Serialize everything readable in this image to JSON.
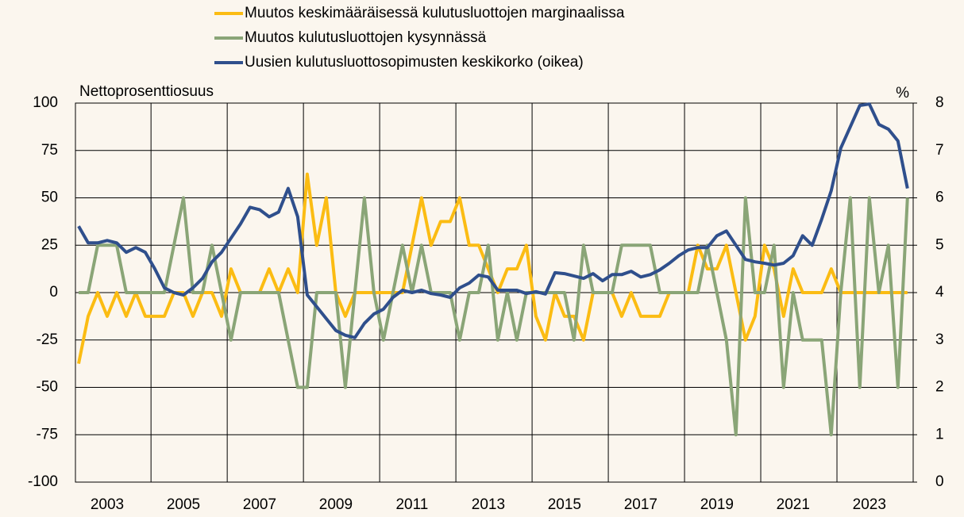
{
  "chart_data": {
    "type": "line",
    "ylabel": "Nettoprosenttiosuus",
    "y2label": "%",
    "x": [
      2002.75,
      2003,
      2003.25,
      2003.5,
      2003.75,
      2004,
      2004.25,
      2004.5,
      2004.75,
      2005,
      2005.25,
      2005.5,
      2005.75,
      2006,
      2006.25,
      2006.5,
      2006.75,
      2007,
      2007.25,
      2007.5,
      2007.75,
      2008,
      2008.25,
      2008.5,
      2008.75,
      2009,
      2009.25,
      2009.5,
      2009.75,
      2010,
      2010.25,
      2010.5,
      2010.75,
      2011,
      2011.25,
      2011.5,
      2011.75,
      2012,
      2012.25,
      2012.5,
      2012.75,
      2013,
      2013.25,
      2013.5,
      2013.75,
      2014,
      2014.25,
      2014.5,
      2014.75,
      2015,
      2015.25,
      2015.5,
      2015.75,
      2016,
      2016.25,
      2016.5,
      2016.75,
      2017,
      2017.25,
      2017.5,
      2017.75,
      2018,
      2018.25,
      2018.5,
      2018.75,
      2019,
      2019.25,
      2019.5,
      2019.75,
      2020,
      2020.25,
      2020.5,
      2020.75,
      2021,
      2021.25,
      2021.5,
      2021.75,
      2022,
      2022.25,
      2022.5,
      2022.75,
      2023,
      2023.25,
      2023.5,
      2023.75,
      2024,
      2024.25,
      2024.5
    ],
    "series": [
      {
        "name": "Muutos keskimääräisessä kulutusluottojen marginaalissa",
        "color": "#fbbc13",
        "values": [
          -37.5,
          -12.5,
          0,
          -12.5,
          0,
          -12.5,
          0,
          -12.5,
          -12.5,
          -12.5,
          0,
          0,
          -12.5,
          0,
          0,
          -12.5,
          12.5,
          0,
          0,
          0,
          12.5,
          0,
          12.5,
          0,
          62.5,
          25,
          50,
          0,
          -12.5,
          0,
          0,
          0,
          0,
          0,
          0,
          25,
          50,
          25,
          37.5,
          37.5,
          50,
          25,
          25,
          12.5,
          0,
          12.5,
          12.5,
          25,
          -12.5,
          -25,
          0,
          -12.5,
          -12.5,
          -25,
          0,
          0,
          0,
          -12.5,
          0,
          -12.5,
          -12.5,
          -12.5,
          0,
          0,
          0,
          25,
          12.5,
          12.5,
          25,
          0,
          -25,
          -12.5,
          25,
          12.5,
          -12.5,
          12.5,
          0,
          0,
          0,
          12.5,
          0,
          0,
          0,
          0,
          0,
          0,
          0,
          0
        ]
      },
      {
        "name": "Muutos kulutusluottojen kysynnässä",
        "color": "#8aa577",
        "values": [
          0,
          0,
          25,
          25,
          25,
          0,
          0,
          0,
          0,
          0,
          25,
          50,
          0,
          0,
          25,
          0,
          -25,
          0,
          0,
          0,
          0,
          0,
          -25,
          -50,
          -50,
          0,
          0,
          0,
          -50,
          0,
          50,
          0,
          -25,
          0,
          25,
          0,
          25,
          0,
          0,
          0,
          -25,
          0,
          0,
          25,
          -25,
          0,
          -25,
          0,
          0,
          0,
          0,
          0,
          -25,
          25,
          0,
          0,
          0,
          25,
          25,
          25,
          25,
          0,
          0,
          0,
          0,
          0,
          25,
          0,
          -25,
          -75,
          50,
          0,
          0,
          25,
          -50,
          0,
          -25,
          -25,
          -25,
          -75,
          0,
          50,
          -50,
          50,
          0,
          25,
          -50,
          50
        ]
      },
      {
        "name": "Uusien kulutusluottosopimusten keskikorko (oikea)",
        "color": "#2f4f8c",
        "axis": "y2",
        "values": [
          5.4,
          5.05,
          5.05,
          5.1,
          5.05,
          4.85,
          4.95,
          4.85,
          4.5,
          4.1,
          4.0,
          3.95,
          4.1,
          4.3,
          4.65,
          4.85,
          5.15,
          5.45,
          5.8,
          5.75,
          5.6,
          5.7,
          6.2,
          5.6,
          3.95,
          3.7,
          3.45,
          3.2,
          3.1,
          3.05,
          3.35,
          3.55,
          3.65,
          3.9,
          4.05,
          4.0,
          4.05,
          3.98,
          3.95,
          3.9,
          4.1,
          4.2,
          4.37,
          4.33,
          4.05,
          4.05,
          4.05,
          3.98,
          4.02,
          3.97,
          4.42,
          4.4,
          4.35,
          4.3,
          4.4,
          4.25,
          4.38,
          4.38,
          4.45,
          4.33,
          4.38,
          4.48,
          4.62,
          4.78,
          4.9,
          4.95,
          4.95,
          5.2,
          5.3,
          5.0,
          4.7,
          4.65,
          4.62,
          4.58,
          4.62,
          4.78,
          5.2,
          5.0,
          5.55,
          6.15,
          7.05,
          7.5,
          7.95,
          7.98,
          7.55,
          7.45,
          7.2,
          6.2
        ]
      }
    ],
    "xlim": [
      2002.667,
      2024.65
    ],
    "xticks": [
      {
        "value": 2003.5,
        "label": "2003"
      },
      {
        "value": 2005.5,
        "label": "2005"
      },
      {
        "value": 2007.5,
        "label": "2007"
      },
      {
        "value": 2009.5,
        "label": "2009"
      },
      {
        "value": 2011.5,
        "label": "2011"
      },
      {
        "value": 2013.5,
        "label": "2013"
      },
      {
        "value": 2015.5,
        "label": "2015"
      },
      {
        "value": 2017.5,
        "label": "2017"
      },
      {
        "value": 2019.5,
        "label": "2019"
      },
      {
        "value": 2021.5,
        "label": "2021"
      },
      {
        "value": 2023.5,
        "label": "2023"
      }
    ],
    "xgrid": [
      2004.65,
      2006.65,
      2008.65,
      2010.65,
      2012.65,
      2014.65,
      2016.65,
      2018.65,
      2020.65,
      2022.65
    ],
    "ylim": [
      -100,
      100
    ],
    "yticks": [
      -100,
      -75,
      -50,
      -25,
      0,
      25,
      50,
      75,
      100
    ],
    "y2lim": [
      0,
      8
    ],
    "y2ticks": [
      0,
      1,
      2,
      3,
      4,
      5,
      6,
      7,
      8
    ],
    "grid": true
  }
}
